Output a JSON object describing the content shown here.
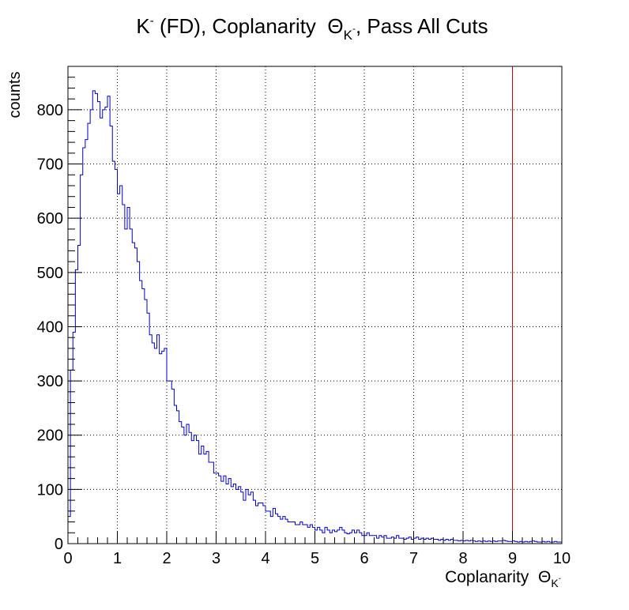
{
  "chart_data": {
    "type": "histogram",
    "title": {
      "prefix": "K",
      "prefix_sup": "-",
      "middle": " (FD), Coplanarity  ",
      "symbol": "Θ",
      "symbol_sub": "K",
      "symbol_sub_sup": "-",
      "suffix": ", Pass All Cuts"
    },
    "xlabel": {
      "text": "Coplanarity  ",
      "symbol": "Θ",
      "symbol_sub": "K",
      "symbol_sub_sup": "-"
    },
    "ylabel": "counts",
    "xlim": [
      0,
      10
    ],
    "ylim": [
      0,
      880
    ],
    "xticks": [
      "0",
      "1",
      "2",
      "3",
      "4",
      "5",
      "6",
      "7",
      "8",
      "9",
      "10"
    ],
    "yticks": [
      "0",
      "100",
      "200",
      "300",
      "400",
      "500",
      "600",
      "700",
      "800"
    ],
    "grid": true,
    "bin_width": 0.05,
    "series": [
      {
        "color": "#0000cc",
        "x_start": 0,
        "values": [
          50,
          320,
          390,
          505,
          550,
          680,
          730,
          745,
          775,
          800,
          835,
          830,
          815,
          785,
          800,
          805,
          825,
          770,
          705,
          690,
          645,
          660,
          625,
          580,
          620,
          580,
          555,
          545,
          520,
          485,
          470,
          450,
          425,
          385,
          370,
          360,
          385,
          350,
          355,
          360,
          300,
          300,
          285,
          255,
          245,
          225,
          215,
          200,
          220,
          205,
          190,
          200,
          190,
          165,
          180,
          165,
          170,
          150,
          150,
          130,
          130,
          125,
          115,
          125,
          110,
          120,
          105,
          110,
          100,
          105,
          95,
          80,
          100,
          90,
          95,
          80,
          70,
          75,
          75,
          70,
          60,
          60,
          50,
          65,
          55,
          50,
          45,
          50,
          45,
          40,
          40,
          40,
          35,
          35,
          40,
          35,
          35,
          30,
          35,
          30,
          25,
          30,
          25,
          20,
          30,
          25,
          20,
          25,
          22,
          25,
          30,
          25,
          20,
          18,
          20,
          25,
          20,
          25,
          20,
          15,
          15,
          20,
          15,
          15,
          15,
          10,
          15,
          12,
          15,
          10,
          10,
          12,
          10,
          15,
          10,
          10,
          8,
          10,
          12,
          8,
          10,
          12,
          8,
          10,
          8,
          10,
          8,
          10,
          8,
          8,
          6,
          8,
          6,
          8,
          6,
          8,
          6,
          6,
          5,
          6,
          5,
          6,
          5,
          6,
          5,
          4,
          5,
          4,
          5,
          4,
          5,
          4,
          5,
          4,
          5,
          5,
          6,
          5,
          4,
          4,
          5,
          4,
          3,
          4,
          3,
          4,
          3,
          4,
          5,
          4,
          3,
          3,
          4,
          3,
          4,
          3,
          3,
          4,
          3,
          3
        ]
      }
    ],
    "annotations": [
      {
        "type": "vertical-line",
        "x": 9,
        "color": "#cc0000"
      }
    ]
  }
}
